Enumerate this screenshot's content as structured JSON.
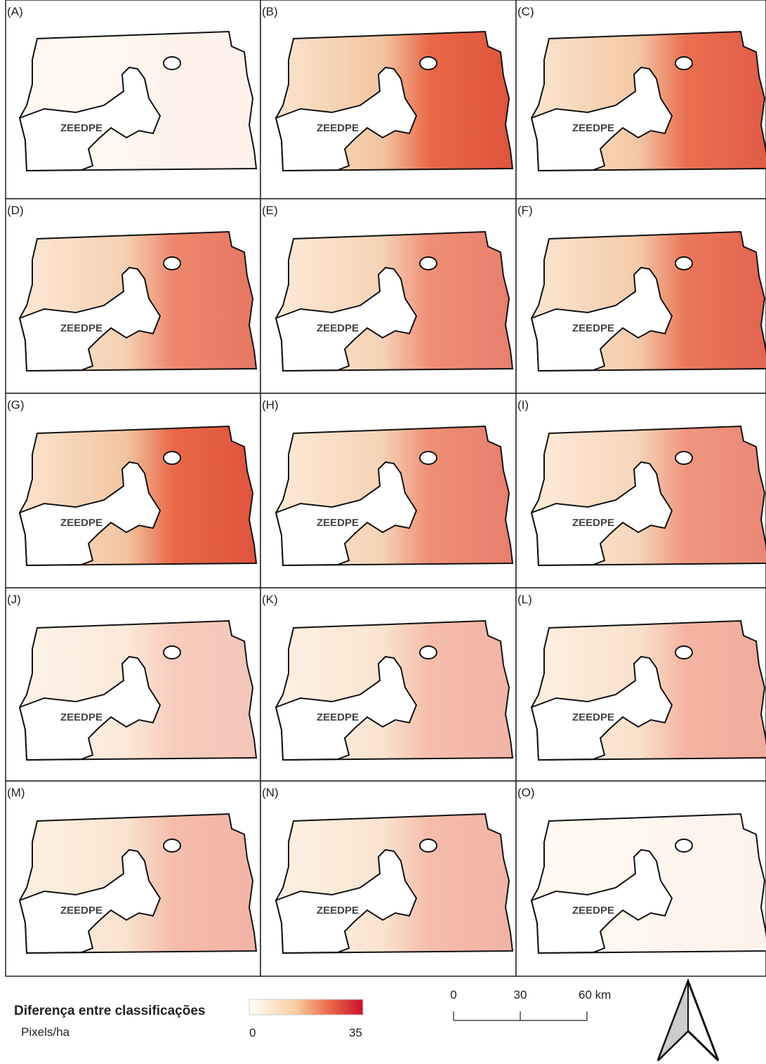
{
  "panels": [
    {
      "label": "(A)"
    },
    {
      "label": "(B)"
    },
    {
      "label": "(C)"
    },
    {
      "label": "(D)"
    },
    {
      "label": "(E)"
    },
    {
      "label": "(F)"
    },
    {
      "label": "(G)"
    },
    {
      "label": "(H)"
    },
    {
      "label": "(I)"
    },
    {
      "label": "(J)"
    },
    {
      "label": "(K)"
    },
    {
      "label": "(L)"
    },
    {
      "label": "(M)"
    },
    {
      "label": "(N)"
    },
    {
      "label": "(O)"
    }
  ],
  "zone_label": "ZEEDPE",
  "legend": {
    "title": "Diferença entre classificações",
    "unit": "Pixels/ha",
    "colorbar": {
      "min": 0,
      "max": 35
    }
  },
  "scale_bar": {
    "ticks": [
      0,
      30,
      {
        "value": 60,
        "label": "60 km"
      }
    ]
  }
}
